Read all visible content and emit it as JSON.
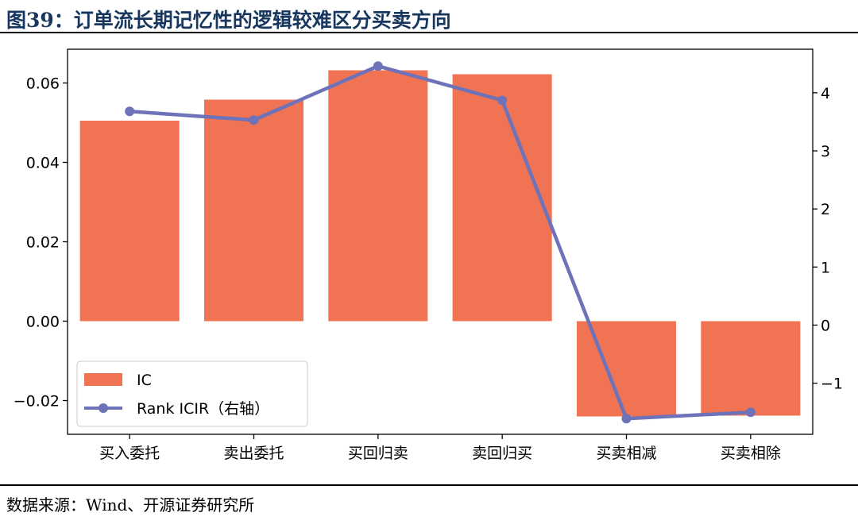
{
  "header": {
    "title": "图39：订单流长期记忆性的逻辑较难区分买卖方向"
  },
  "footer": {
    "source": "数据来源：Wind、开源证券研究所"
  },
  "chart_data": {
    "type": "bar",
    "categories": [
      "买入委托",
      "卖出委托",
      "买回归卖",
      "卖回归买",
      "买卖相减",
      "买卖相除"
    ],
    "series": [
      {
        "name": "IC",
        "type": "bar",
        "axis": "left",
        "color": "#f07453",
        "values": [
          0.0505,
          0.0558,
          0.0632,
          0.0622,
          -0.024,
          -0.0238
        ]
      },
      {
        "name": "Rank ICIR（右轴）",
        "type": "line",
        "axis": "right",
        "color": "#6e72b8",
        "values": [
          3.68,
          3.53,
          4.46,
          3.87,
          -1.61,
          -1.5
        ]
      }
    ],
    "y_left": {
      "ylim": [
        -0.0285,
        0.0685
      ],
      "ticks": [
        -0.02,
        0.0,
        0.02,
        0.04,
        0.06
      ],
      "tick_labels": [
        "−0.02",
        "0.00",
        "0.02",
        "0.04",
        "0.06"
      ]
    },
    "y_right": {
      "ylim": [
        -1.88,
        4.75
      ],
      "ticks": [
        -1,
        0,
        1,
        2,
        3,
        4
      ],
      "tick_labels": [
        "−1",
        "0",
        "1",
        "2",
        "3",
        "4"
      ]
    },
    "legend": "lower-left",
    "grid": false
  }
}
